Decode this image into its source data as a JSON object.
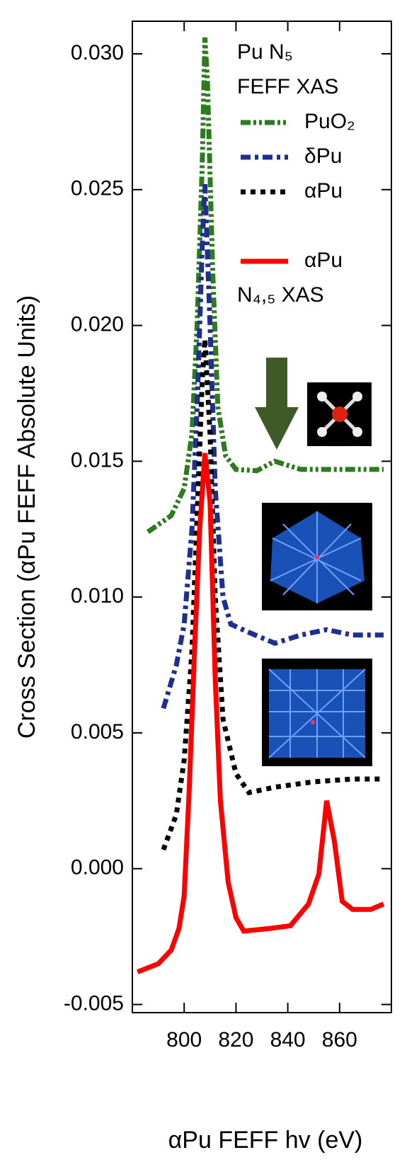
{
  "chart_data": {
    "type": "line",
    "ylabel": "Cross Section (αPu FEFF Absolute Units)",
    "xlabel": "αPu FEFF hv (eV)",
    "legend_heading": [
      "Pu N₅",
      "FEFF XAS"
    ],
    "annotation": "N₄,₅ XAS",
    "xlim": [
      780,
      880
    ],
    "xticks": [
      800,
      820,
      840,
      860
    ],
    "ylim": [
      -0.0053,
      0.0312
    ],
    "yticks": [
      {
        "value": -0.005,
        "label": "-0.005"
      },
      {
        "value": 0,
        "label": "0.000"
      },
      {
        "value": 0.005,
        "label": "0.005"
      },
      {
        "value": 0.01,
        "label": "0.010"
      },
      {
        "value": 0.015,
        "label": "0.015"
      },
      {
        "value": 0.02,
        "label": "0.020"
      },
      {
        "value": 0.025,
        "label": "0.025"
      },
      {
        "value": 0.03,
        "label": "0.030"
      }
    ],
    "series": [
      {
        "name": "PuO₂",
        "color": "#2e7a1e",
        "line_style": "dash-dot-dot",
        "x": [
          786,
          795,
          800,
          803,
          805,
          807,
          808,
          809,
          811,
          813,
          816,
          820,
          828,
          835,
          845,
          860,
          877
        ],
        "values": [
          0.0124,
          0.013,
          0.014,
          0.016,
          0.02,
          0.026,
          0.0306,
          0.029,
          0.022,
          0.017,
          0.0152,
          0.0147,
          0.01465,
          0.015,
          0.0147,
          0.0147,
          0.0147
        ]
      },
      {
        "name": "δPu",
        "color": "#1f2f8f",
        "line_style": "dash-dot",
        "x": [
          792,
          797,
          800,
          803,
          805,
          807,
          808,
          810,
          812,
          815,
          818,
          825,
          835,
          845,
          855,
          865,
          877
        ],
        "values": [
          0.0059,
          0.0075,
          0.009,
          0.0125,
          0.017,
          0.023,
          0.0252,
          0.02,
          0.014,
          0.01,
          0.009,
          0.0087,
          0.0083,
          0.0086,
          0.0088,
          0.0086,
          0.0086
        ]
      },
      {
        "name": "αPu",
        "color": "#000000",
        "line_style": "dotted",
        "x": [
          792,
          797,
          800,
          803,
          805,
          807,
          808,
          810,
          812,
          815,
          820,
          825,
          835,
          850,
          865,
          877
        ],
        "values": [
          0.0007,
          0.002,
          0.004,
          0.008,
          0.013,
          0.018,
          0.0195,
          0.016,
          0.01,
          0.0055,
          0.0035,
          0.0028,
          0.003,
          0.0032,
          0.0033,
          0.0033
        ]
      },
      {
        "name": "αPu",
        "color": "#ff0000",
        "line_style": "solid",
        "x": [
          782,
          790,
          795,
          798,
          800,
          802,
          804,
          806,
          808,
          810,
          812,
          814,
          817,
          820,
          823,
          833,
          841,
          848,
          852,
          855,
          858,
          861,
          865,
          872,
          877
        ],
        "values": [
          -0.0038,
          -0.0035,
          -0.003,
          -0.0022,
          -0.001,
          0.003,
          0.008,
          0.0125,
          0.0153,
          0.0135,
          0.007,
          0.0025,
          -0.0005,
          -0.0018,
          -0.0023,
          -0.0022,
          -0.0021,
          -0.0013,
          -0.0002,
          0.0025,
          0.001,
          -0.0012,
          -0.0015,
          -0.0015,
          -0.0013
        ]
      }
    ]
  }
}
